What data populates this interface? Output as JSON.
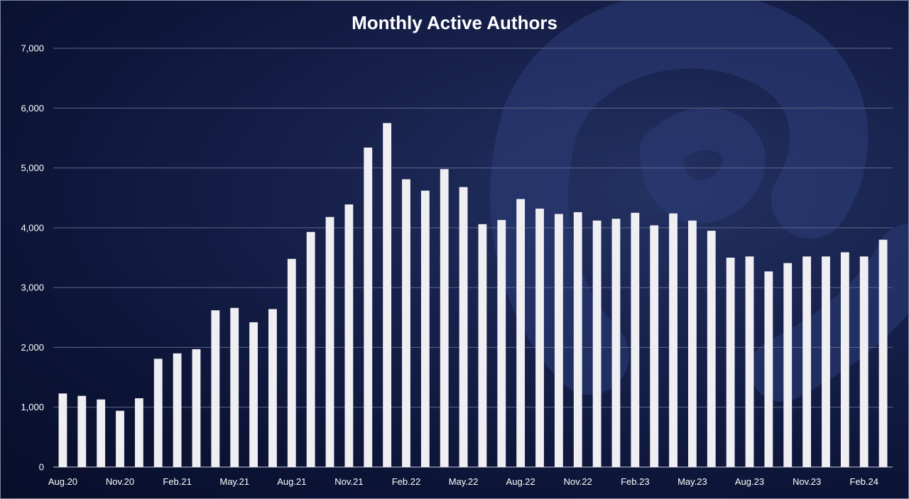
{
  "colors": {
    "bar": "#efeff3",
    "gridline": "#5f6887",
    "axis_text": "#ffffff",
    "background": "#0c1436"
  },
  "chart_data": {
    "type": "bar",
    "title": "Monthly Active Authors",
    "xlabel": "",
    "ylabel": "",
    "ylim": [
      0,
      7000
    ],
    "yticks": [
      0,
      1000,
      2000,
      3000,
      4000,
      5000,
      6000,
      7000
    ],
    "ytick_labels": [
      "0",
      "1,000",
      "2,000",
      "3,000",
      "4,000",
      "5,000",
      "6,000",
      "7,000"
    ],
    "grid": true,
    "legend": "none",
    "categories": [
      "Aug.20",
      "Sep.20",
      "Oct.20",
      "Nov.20",
      "Dec.20",
      "Jan.21",
      "Feb.21",
      "Mar.21",
      "Apr.21",
      "May.21",
      "Jun.21",
      "Jul.21",
      "Aug.21",
      "Sep.21",
      "Oct.21",
      "Nov.21",
      "Dec.21",
      "Jan.22",
      "Feb.22",
      "Mar.22",
      "Apr.22",
      "May.22",
      "Jun.22",
      "Jul.22",
      "Aug.22",
      "Sep.22",
      "Oct.22",
      "Nov.22",
      "Dec.22",
      "Jan.23",
      "Feb.23",
      "Mar.23",
      "Apr.23",
      "May.23",
      "Jun.23",
      "Jul.23",
      "Aug.23",
      "Sep.23",
      "Oct.23",
      "Nov.23",
      "Dec.23",
      "Jan.24",
      "Feb.24",
      "Mar.24"
    ],
    "xtick_labels": [
      {
        "index": 0,
        "label": "Aug.20"
      },
      {
        "index": 3,
        "label": "Nov.20"
      },
      {
        "index": 6,
        "label": "Feb.21"
      },
      {
        "index": 9,
        "label": "May.21"
      },
      {
        "index": 12,
        "label": "Aug.21"
      },
      {
        "index": 15,
        "label": "Nov.21"
      },
      {
        "index": 18,
        "label": "Feb.22"
      },
      {
        "index": 21,
        "label": "May.22"
      },
      {
        "index": 24,
        "label": "Aug.22"
      },
      {
        "index": 27,
        "label": "Nov.22"
      },
      {
        "index": 30,
        "label": "Feb.23"
      },
      {
        "index": 33,
        "label": "May.23"
      },
      {
        "index": 36,
        "label": "Aug.23"
      },
      {
        "index": 39,
        "label": "Nov.23"
      },
      {
        "index": 42,
        "label": "Feb.24"
      }
    ],
    "values": [
      1230,
      1190,
      1130,
      940,
      1150,
      1810,
      1900,
      1970,
      2620,
      2660,
      2420,
      2640,
      3480,
      3930,
      4180,
      4390,
      5340,
      5750,
      4810,
      4620,
      4980,
      4680,
      4060,
      4130,
      4480,
      4320,
      4230,
      4260,
      4120,
      4150,
      4250,
      4040,
      4240,
      4120,
      3950,
      3500,
      3520,
      3270,
      3410,
      3520,
      3520,
      3590,
      3520,
      3800
    ]
  }
}
